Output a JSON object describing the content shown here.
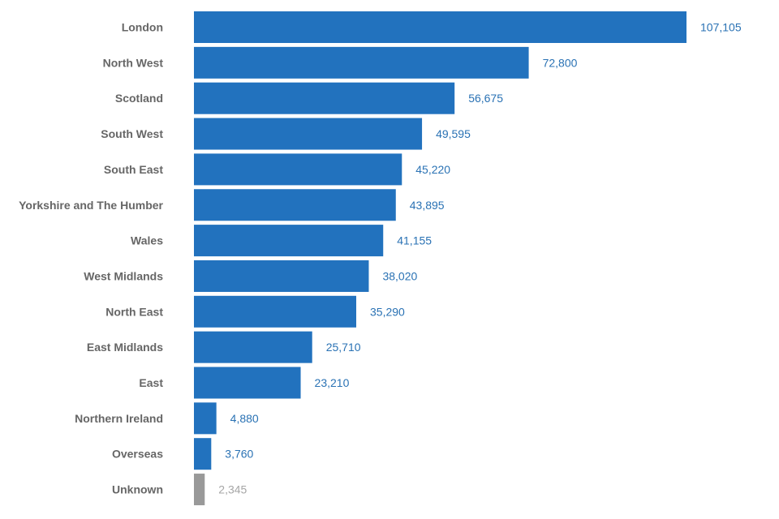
{
  "chart_data": {
    "type": "bar",
    "orientation": "horizontal",
    "categories": [
      "London",
      "North West",
      "Scotland",
      "South West",
      "South East",
      "Yorkshire and The Humber",
      "Wales",
      "West Midlands",
      "North East",
      "East Midlands",
      "East",
      "Northern Ireland",
      "Overseas",
      "Unknown"
    ],
    "values": [
      107105,
      72800,
      56675,
      49595,
      45220,
      43895,
      41155,
      38020,
      35290,
      25710,
      23210,
      4880,
      3760,
      2345
    ],
    "value_labels": [
      "107,105",
      "72,800",
      "56,675",
      "49,595",
      "45,220",
      "43,895",
      "41,155",
      "38,020",
      "35,290",
      "25,710",
      "23,210",
      "4,880",
      "3,760",
      "2,345"
    ],
    "bar_colors": [
      "#2272be",
      "#2272be",
      "#2272be",
      "#2272be",
      "#2272be",
      "#2272be",
      "#2272be",
      "#2272be",
      "#2272be",
      "#2272be",
      "#2272be",
      "#2272be",
      "#2272be",
      "#999999"
    ],
    "label_colors": [
      "#2a72b4",
      "#2a72b4",
      "#2a72b4",
      "#2a72b4",
      "#2a72b4",
      "#2a72b4",
      "#2a72b4",
      "#2a72b4",
      "#2a72b4",
      "#2a72b4",
      "#2a72b4",
      "#2a72b4",
      "#2a72b4",
      "#a6a6a6"
    ],
    "category_label_color": "#666666",
    "xlim": [
      0,
      107105
    ],
    "grid": false,
    "legend": "none"
  }
}
